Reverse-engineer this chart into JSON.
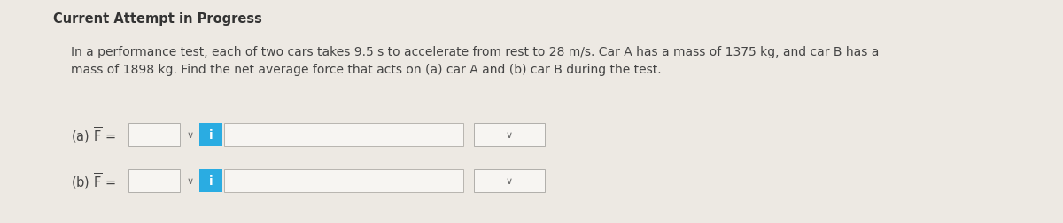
{
  "background_color": "#ede9e3",
  "title": "Current Attempt in Progress",
  "title_fontsize": 10.5,
  "body_line1": "In a performance test, each of two cars takes 9.5 s to accelerate from rest to 28 m/s. Car A has a mass of 1375 kg, and car B has a",
  "body_line2": "mass of 1898 kg. Find the net average force that acts on (a) car A and (b) car B during the test.",
  "body_fontsize": 10.0,
  "label_a": "(a) $\\mathregular{\\overline{F}}$ =",
  "label_b": "(b) $\\mathregular{\\overline{F}}$ =",
  "label_fontsize": 10.5,
  "dropdown_box_color": "#f7f5f2",
  "dropdown_border_color": "#b0aeab",
  "blue_btn_color": "#2aace2",
  "blue_btn_text": "i",
  "blue_btn_text_color": "#ffffff",
  "input_box_color": "#f7f5f2",
  "input_box_border_color": "#b8b5b0",
  "chevron_color": "#666666",
  "text_color": "#444444",
  "title_color": "#333333"
}
